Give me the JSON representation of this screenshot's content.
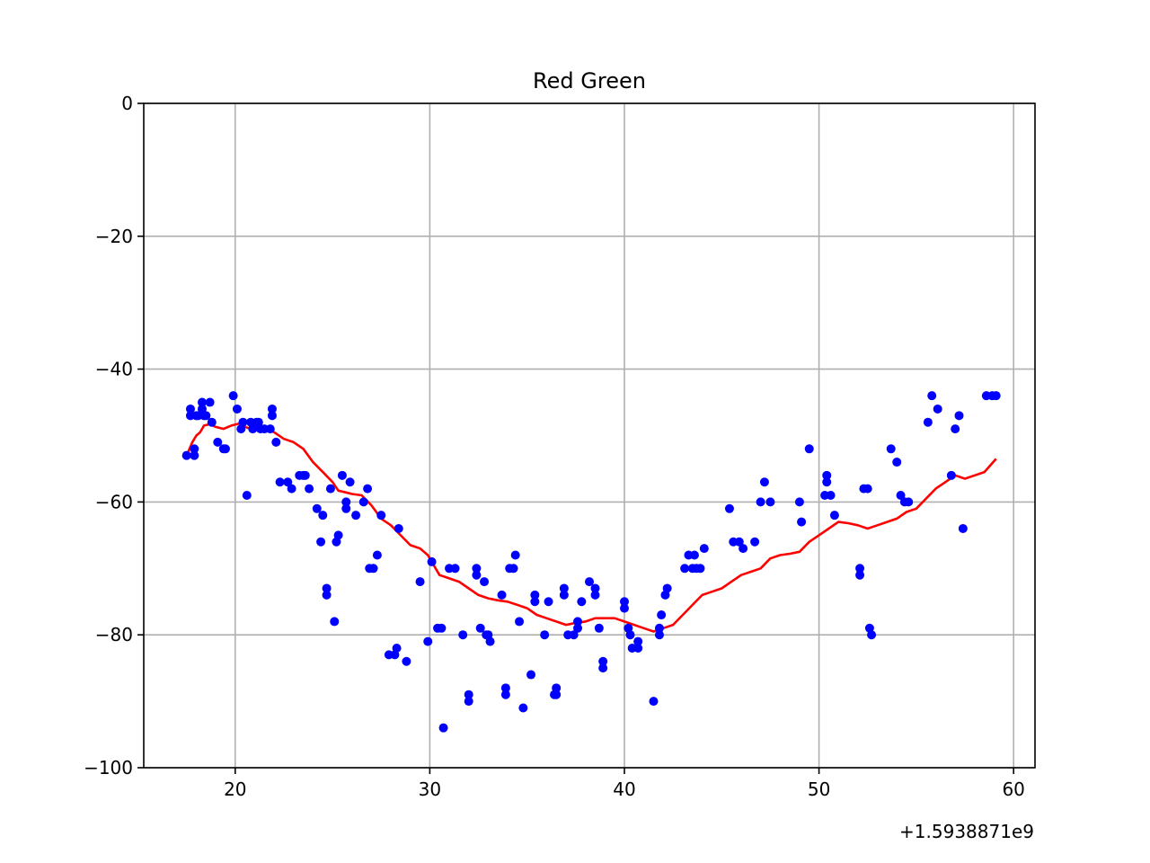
{
  "chart_data": {
    "type": "scatter",
    "title": "Red Green",
    "xlabel": "",
    "ylabel": "",
    "x_offset_label": "+1.5938871e9",
    "xlim": [
      15.3,
      61.1
    ],
    "ylim": [
      -100,
      0
    ],
    "xticks": [
      20,
      30,
      40,
      50,
      60
    ],
    "yticks": [
      0,
      -20,
      -40,
      -60,
      -80,
      -100
    ],
    "xtick_labels": [
      "20",
      "30",
      "40",
      "50",
      "60"
    ],
    "ytick_labels": [
      "0",
      "−20",
      "−40",
      "−60",
      "−80",
      "−100"
    ],
    "grid": true,
    "series": [
      {
        "kind": "scatter",
        "color": "#0000ff",
        "x": [
          17.5,
          17.7,
          17.7,
          17.9,
          17.9,
          18.0,
          18.1,
          18.3,
          18.3,
          18.4,
          18.5,
          18.7,
          18.8,
          19.1,
          19.4,
          19.5,
          19.9,
          20.1,
          20.3,
          20.4,
          20.6,
          20.8,
          20.9,
          21.1,
          21.2,
          21.3,
          21.5,
          21.8,
          21.9,
          21.9,
          22.1,
          22.3,
          22.7,
          22.9,
          23.3,
          23.5,
          23.6,
          23.8,
          24.2,
          24.4,
          24.5,
          24.7,
          24.7,
          24.9,
          25.1,
          25.2,
          25.3,
          25.5,
          25.7,
          25.7,
          25.9,
          26.2,
          26.6,
          26.8,
          26.9,
          27.1,
          27.3,
          27.5,
          27.9,
          28.2,
          28.3,
          28.4,
          28.8,
          29.5,
          29.9,
          30.1,
          30.4,
          30.6,
          30.7,
          31.0,
          31.3,
          31.7,
          32.0,
          32.0,
          32.4,
          32.4,
          32.6,
          32.8,
          32.9,
          33.0,
          33.1,
          33.7,
          33.9,
          33.9,
          34.1,
          34.3,
          34.4,
          34.6,
          34.8,
          35.2,
          35.4,
          35.4,
          35.9,
          36.1,
          36.4,
          36.5,
          36.5,
          36.9,
          36.9,
          37.1,
          37.4,
          37.6,
          37.6,
          37.8,
          38.2,
          38.5,
          38.5,
          38.7,
          38.9,
          38.9,
          40.0,
          40.0,
          40.2,
          40.3,
          40.4,
          40.7,
          40.7,
          41.5,
          41.8,
          41.8,
          41.9,
          42.1,
          42.2,
          43.1,
          43.3,
          43.5,
          43.6,
          43.7,
          43.9,
          44.1,
          45.4,
          45.6,
          45.9,
          46.1,
          46.7,
          47.0,
          47.2,
          47.5,
          49.0,
          49.1,
          49.5,
          50.3,
          50.4,
          50.4,
          50.6,
          50.8,
          52.1,
          52.1,
          52.3,
          52.5,
          52.6,
          52.7,
          53.7,
          54.0,
          54.2,
          54.4,
          54.6,
          55.6,
          55.8,
          56.1,
          56.8,
          57.0,
          57.2,
          57.4,
          58.6,
          58.9,
          59.1
        ],
        "y": [
          -53,
          -46,
          -47,
          -52,
          -53,
          -47,
          -47,
          -45,
          -46,
          -47,
          -47,
          -45,
          -48,
          -51,
          -52,
          -52,
          -44,
          -46,
          -49,
          -48,
          -59,
          -48,
          -49,
          -48,
          -48,
          -49,
          -49,
          -49,
          -47,
          -46,
          -51,
          -57,
          -57,
          -58,
          -56,
          -56,
          -56,
          -58,
          -61,
          -66,
          -62,
          -73,
          -74,
          -58,
          -78,
          -66,
          -65,
          -56,
          -60,
          -61,
          -57,
          -62,
          -60,
          -58,
          -70,
          -70,
          -68,
          -62,
          -83,
          -83,
          -82,
          -64,
          -84,
          -72,
          -81,
          -69,
          -79,
          -79,
          -94,
          -70,
          -70,
          -80,
          -89,
          -90,
          -70,
          -71,
          -79,
          -72,
          -80,
          -80,
          -81,
          -74,
          -88,
          -89,
          -70,
          -70,
          -68,
          -78,
          -91,
          -86,
          -74,
          -75,
          -80,
          -75,
          -89,
          -89,
          -88,
          -73,
          -74,
          -80,
          -80,
          -78,
          -79,
          -75,
          -72,
          -73,
          -74,
          -79,
          -84,
          -85,
          -75,
          -76,
          -79,
          -80,
          -82,
          -81,
          -82,
          -90,
          -79,
          -80,
          -77,
          -74,
          -73,
          -70,
          -68,
          -70,
          -68,
          -70,
          -70,
          -67,
          -61,
          -66,
          -66,
          -67,
          -66,
          -60,
          -57,
          -60,
          -60,
          -63,
          -52,
          -59,
          -56,
          -57,
          -59,
          -62,
          -70,
          -71,
          -58,
          -58,
          -79,
          -80,
          -52,
          -54,
          -59,
          -60,
          -60,
          -48,
          -44,
          -46,
          -56,
          -49,
          -47,
          -64,
          -44,
          -44,
          -44
        ]
      },
      {
        "kind": "line",
        "color": "#ff0000",
        "x": [
          17.5,
          17.8,
          18.0,
          18.2,
          18.4,
          18.7,
          19.0,
          19.4,
          19.8,
          20.2,
          20.6,
          21.0,
          21.5,
          22.0,
          22.5,
          23.0,
          23.5,
          24.0,
          24.5,
          25.0,
          25.3,
          25.6,
          26.0,
          26.5,
          27.0,
          27.5,
          28.0,
          28.5,
          29.0,
          29.5,
          29.9,
          30.2,
          30.5,
          31.0,
          31.5,
          32.0,
          32.5,
          33.0,
          33.5,
          34.0,
          34.5,
          35.0,
          35.5,
          36.0,
          36.5,
          37.0,
          37.5,
          38.0,
          38.5,
          39.0,
          39.5,
          40.0,
          40.5,
          41.0,
          41.5,
          42.0,
          42.5,
          43.0,
          43.5,
          44.0,
          44.5,
          45.0,
          45.5,
          46.0,
          46.5,
          47.0,
          47.5,
          48.0,
          48.5,
          49.0,
          49.5,
          50.0,
          50.5,
          51.0,
          51.5,
          52.0,
          52.5,
          53.0,
          53.5,
          54.0,
          54.5,
          55.0,
          55.5,
          56.0,
          56.5,
          57.0,
          57.5,
          58.0,
          58.5,
          59.1
        ],
        "y": [
          -53,
          -51,
          -50,
          -49.5,
          -48.5,
          -48.3,
          -48.7,
          -49,
          -48.5,
          -48.2,
          -48.8,
          -49.2,
          -49,
          -49.5,
          -50.5,
          -51,
          -52,
          -54,
          -55.5,
          -57,
          -58.3,
          -58.5,
          -58.8,
          -59,
          -60.5,
          -62.5,
          -63.5,
          -65,
          -66.5,
          -67,
          -68,
          -69.5,
          -71,
          -71.5,
          -72,
          -73,
          -74,
          -74.5,
          -74.8,
          -75,
          -75.5,
          -76,
          -77,
          -77.5,
          -78,
          -78.5,
          -78.2,
          -78,
          -77.5,
          -77.5,
          -77.5,
          -78,
          -78.5,
          -79,
          -79.5,
          -79,
          -78.5,
          -77,
          -75.5,
          -74,
          -73.5,
          -73,
          -72,
          -71,
          -70.5,
          -70,
          -68.5,
          -68,
          -67.8,
          -67.5,
          -66,
          -65,
          -64,
          -63,
          -63.2,
          -63.5,
          -64,
          -63.5,
          -63,
          -62.5,
          -61.5,
          -61,
          -59.5,
          -58,
          -57,
          -56,
          -56.5,
          -56,
          -55.5,
          -53.5
        ]
      }
    ]
  }
}
